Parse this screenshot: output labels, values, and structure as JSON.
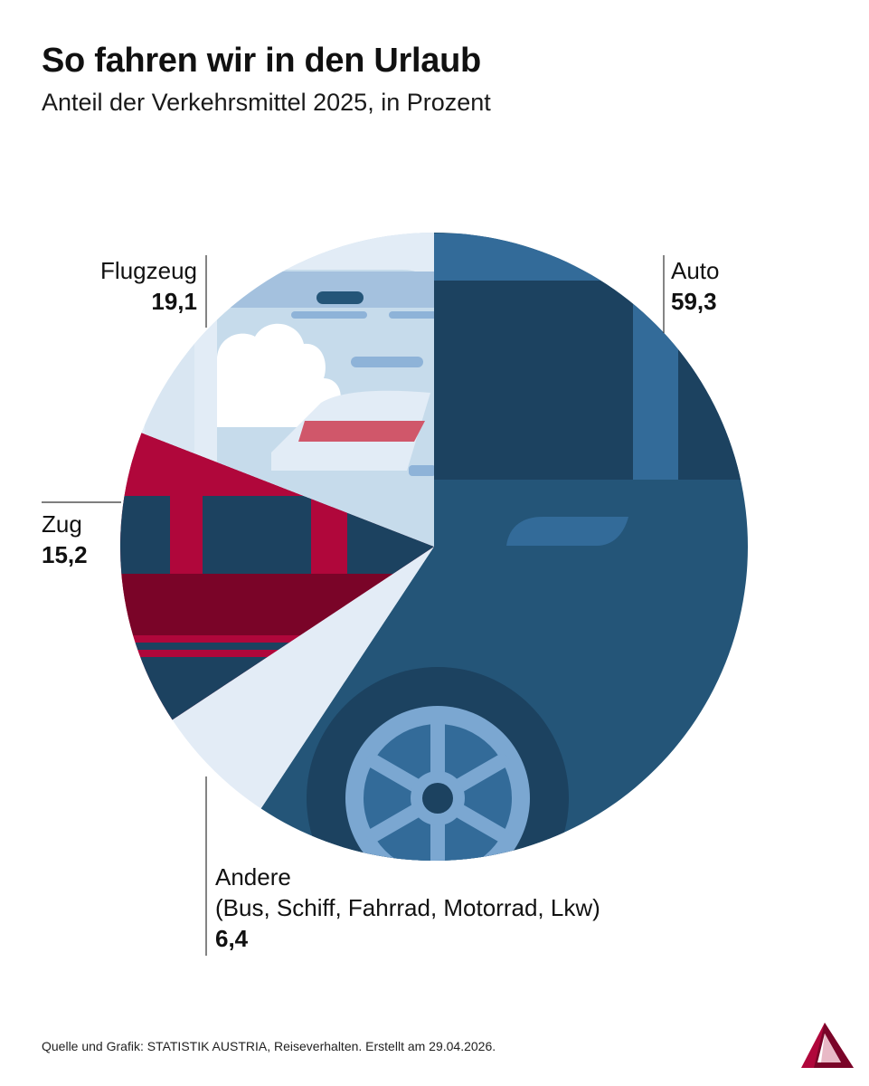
{
  "title": "So fahren wir in den Urlaub",
  "subtitle": "Anteil der Verkehrsmittel 2025, in Prozent",
  "source": "Quelle und Grafik: STATISTIK AUSTRIA, Reiseverhalten. Erstellt am 29.04.2026.",
  "chart_data": {
    "type": "pie",
    "title": "So fahren wir in den Urlaub",
    "subtitle": "Anteil der Verkehrsmittel 2025, in Prozent",
    "categories": [
      "Auto",
      "Andere",
      "Zug",
      "Flugzeug"
    ],
    "category_notes": {
      "Andere": "(Bus, Schiff, Fahrrad, Motorrad, Lkw)"
    },
    "values": [
      59.3,
      6.4,
      15.2,
      19.1
    ],
    "value_labels": [
      "59,3",
      "6,4",
      "15,2",
      "19,1"
    ],
    "start": "12 o'clock, clockwise",
    "colors": {
      "Auto": "#245578",
      "Andere": "#e3ecf6",
      "Zug": "#b0073b",
      "Flugzeug": "#c6dbeb"
    }
  }
}
